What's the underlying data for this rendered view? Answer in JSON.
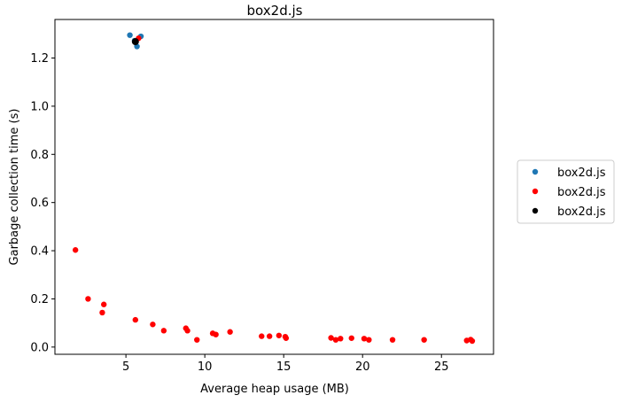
{
  "chart_data": {
    "type": "scatter",
    "title": "box2d.js",
    "xlabel": "Average heap usage (MB)",
    "ylabel": "Garbage collection time (s)",
    "xlim": [
      0.5,
      28.3
    ],
    "ylim": [
      -0.03,
      1.36
    ],
    "xticks": [
      5,
      10,
      15,
      20,
      25
    ],
    "yticks": [
      0.0,
      0.2,
      0.4,
      0.6,
      0.8,
      1.0,
      1.2
    ],
    "grid": false,
    "legend_position": "center-right outside",
    "series": [
      {
        "name": "box2d.js",
        "color": "#1f77b4",
        "points": [
          [
            5.25,
            1.295
          ],
          [
            5.95,
            1.29
          ],
          [
            5.7,
            1.248
          ],
          [
            5.55,
            1.272
          ]
        ]
      },
      {
        "name": "box2d.js",
        "color": "#ff0000",
        "points": [
          [
            1.8,
            0.403
          ],
          [
            2.6,
            0.2
          ],
          [
            3.5,
            0.143
          ],
          [
            3.6,
            0.177
          ],
          [
            5.6,
            0.113
          ],
          [
            6.7,
            0.094
          ],
          [
            7.4,
            0.068
          ],
          [
            8.8,
            0.078
          ],
          [
            8.9,
            0.068
          ],
          [
            9.5,
            0.03
          ],
          [
            10.5,
            0.057
          ],
          [
            10.7,
            0.052
          ],
          [
            11.6,
            0.063
          ],
          [
            13.6,
            0.045
          ],
          [
            14.1,
            0.045
          ],
          [
            14.7,
            0.048
          ],
          [
            15.1,
            0.043
          ],
          [
            15.15,
            0.037
          ],
          [
            18.0,
            0.038
          ],
          [
            18.3,
            0.03
          ],
          [
            18.6,
            0.035
          ],
          [
            19.3,
            0.037
          ],
          [
            20.1,
            0.035
          ],
          [
            20.4,
            0.03
          ],
          [
            21.9,
            0.03
          ],
          [
            23.9,
            0.03
          ],
          [
            26.6,
            0.027
          ],
          [
            26.85,
            0.031
          ],
          [
            26.95,
            0.025
          ],
          [
            5.8,
            1.282
          ]
        ]
      },
      {
        "name": "box2d.js",
        "color": "#000000",
        "points": [
          [
            5.6,
            1.268
          ]
        ]
      }
    ]
  }
}
